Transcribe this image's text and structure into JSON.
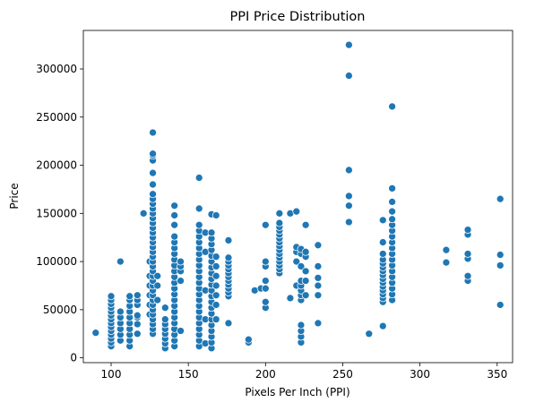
{
  "chart_data": {
    "type": "scatter",
    "title": "PPI Price Distribution",
    "xlabel": "Pixels Per Inch (PPI)",
    "ylabel": "Price",
    "xlim": [
      82,
      360
    ],
    "ylim": [
      -5000,
      340000
    ],
    "x_ticks": [
      100,
      150,
      200,
      250,
      300,
      350
    ],
    "y_ticks": [
      0,
      50000,
      100000,
      150000,
      200000,
      250000,
      300000
    ],
    "grid": false,
    "legend": "none",
    "marker_color": "#1f77b4",
    "marker_edge": "#ffffff",
    "points": [
      {
        "x": 90,
        "y": 26000
      },
      {
        "x": 100,
        "y": 12000
      },
      {
        "x": 100,
        "y": 16000
      },
      {
        "x": 100,
        "y": 20000
      },
      {
        "x": 100,
        "y": 24000
      },
      {
        "x": 100,
        "y": 28000
      },
      {
        "x": 100,
        "y": 32000
      },
      {
        "x": 100,
        "y": 36000
      },
      {
        "x": 100,
        "y": 40000
      },
      {
        "x": 100,
        "y": 44000
      },
      {
        "x": 100,
        "y": 48000
      },
      {
        "x": 100,
        "y": 52000
      },
      {
        "x": 100,
        "y": 56000
      },
      {
        "x": 100,
        "y": 60000
      },
      {
        "x": 100,
        "y": 64000
      },
      {
        "x": 106,
        "y": 18000
      },
      {
        "x": 106,
        "y": 24000
      },
      {
        "x": 106,
        "y": 30000
      },
      {
        "x": 106,
        "y": 36000
      },
      {
        "x": 106,
        "y": 42000
      },
      {
        "x": 106,
        "y": 48000
      },
      {
        "x": 106,
        "y": 100000
      },
      {
        "x": 112,
        "y": 12000
      },
      {
        "x": 112,
        "y": 18000
      },
      {
        "x": 112,
        "y": 24000
      },
      {
        "x": 112,
        "y": 30000
      },
      {
        "x": 112,
        "y": 36000
      },
      {
        "x": 112,
        "y": 42000
      },
      {
        "x": 112,
        "y": 48000
      },
      {
        "x": 112,
        "y": 54000
      },
      {
        "x": 112,
        "y": 60000
      },
      {
        "x": 112,
        "y": 64000
      },
      {
        "x": 117,
        "y": 25000
      },
      {
        "x": 117,
        "y": 35000
      },
      {
        "x": 117,
        "y": 42000
      },
      {
        "x": 117,
        "y": 44000
      },
      {
        "x": 117,
        "y": 55000
      },
      {
        "x": 117,
        "y": 60000
      },
      {
        "x": 117,
        "y": 65000
      },
      {
        "x": 121,
        "y": 150000
      },
      {
        "x": 125,
        "y": 45000
      },
      {
        "x": 125,
        "y": 55000
      },
      {
        "x": 125,
        "y": 65000
      },
      {
        "x": 125,
        "y": 75000
      },
      {
        "x": 125,
        "y": 85000
      },
      {
        "x": 125,
        "y": 100000
      },
      {
        "x": 127,
        "y": 25000
      },
      {
        "x": 127,
        "y": 30000
      },
      {
        "x": 127,
        "y": 35000
      },
      {
        "x": 127,
        "y": 40000
      },
      {
        "x": 127,
        "y": 45000
      },
      {
        "x": 127,
        "y": 50000
      },
      {
        "x": 127,
        "y": 55000
      },
      {
        "x": 127,
        "y": 60000
      },
      {
        "x": 127,
        "y": 65000
      },
      {
        "x": 127,
        "y": 70000
      },
      {
        "x": 127,
        "y": 75000
      },
      {
        "x": 127,
        "y": 80000
      },
      {
        "x": 127,
        "y": 85000
      },
      {
        "x": 127,
        "y": 90000
      },
      {
        "x": 127,
        "y": 95000
      },
      {
        "x": 127,
        "y": 100000
      },
      {
        "x": 127,
        "y": 105000
      },
      {
        "x": 127,
        "y": 110000
      },
      {
        "x": 127,
        "y": 115000
      },
      {
        "x": 127,
        "y": 120000
      },
      {
        "x": 127,
        "y": 125000
      },
      {
        "x": 127,
        "y": 130000
      },
      {
        "x": 127,
        "y": 135000
      },
      {
        "x": 127,
        "y": 140000
      },
      {
        "x": 127,
        "y": 145000
      },
      {
        "x": 127,
        "y": 150000
      },
      {
        "x": 127,
        "y": 155000
      },
      {
        "x": 127,
        "y": 160000
      },
      {
        "x": 127,
        "y": 165000
      },
      {
        "x": 127,
        "y": 170000
      },
      {
        "x": 127,
        "y": 180000
      },
      {
        "x": 127,
        "y": 192000
      },
      {
        "x": 127,
        "y": 205000
      },
      {
        "x": 127,
        "y": 210000
      },
      {
        "x": 127,
        "y": 212000
      },
      {
        "x": 127,
        "y": 234000
      },
      {
        "x": 130,
        "y": 60000
      },
      {
        "x": 130,
        "y": 75000
      },
      {
        "x": 130,
        "y": 85000
      },
      {
        "x": 135,
        "y": 10000
      },
      {
        "x": 135,
        "y": 15000
      },
      {
        "x": 135,
        "y": 20000
      },
      {
        "x": 135,
        "y": 25000
      },
      {
        "x": 135,
        "y": 30000
      },
      {
        "x": 135,
        "y": 35000
      },
      {
        "x": 135,
        "y": 40000
      },
      {
        "x": 135,
        "y": 52000
      },
      {
        "x": 141,
        "y": 12000
      },
      {
        "x": 141,
        "y": 18000
      },
      {
        "x": 141,
        "y": 24000
      },
      {
        "x": 141,
        "y": 30000
      },
      {
        "x": 141,
        "y": 36000
      },
      {
        "x": 141,
        "y": 42000
      },
      {
        "x": 141,
        "y": 48000
      },
      {
        "x": 141,
        "y": 54000
      },
      {
        "x": 141,
        "y": 60000
      },
      {
        "x": 141,
        "y": 66000
      },
      {
        "x": 141,
        "y": 72000
      },
      {
        "x": 141,
        "y": 78000
      },
      {
        "x": 141,
        "y": 84000
      },
      {
        "x": 141,
        "y": 90000
      },
      {
        "x": 141,
        "y": 96000
      },
      {
        "x": 141,
        "y": 102000
      },
      {
        "x": 141,
        "y": 108000
      },
      {
        "x": 141,
        "y": 114000
      },
      {
        "x": 141,
        "y": 120000
      },
      {
        "x": 141,
        "y": 126000
      },
      {
        "x": 141,
        "y": 138000
      },
      {
        "x": 141,
        "y": 148000
      },
      {
        "x": 141,
        "y": 158000
      },
      {
        "x": 145,
        "y": 28000
      },
      {
        "x": 145,
        "y": 80000
      },
      {
        "x": 145,
        "y": 90000
      },
      {
        "x": 145,
        "y": 95000
      },
      {
        "x": 145,
        "y": 100000
      },
      {
        "x": 157,
        "y": 12000
      },
      {
        "x": 157,
        "y": 18000
      },
      {
        "x": 157,
        "y": 24000
      },
      {
        "x": 157,
        "y": 30000
      },
      {
        "x": 157,
        "y": 36000
      },
      {
        "x": 157,
        "y": 42000
      },
      {
        "x": 157,
        "y": 48000
      },
      {
        "x": 157,
        "y": 54000
      },
      {
        "x": 157,
        "y": 60000
      },
      {
        "x": 157,
        "y": 66000
      },
      {
        "x": 157,
        "y": 72000
      },
      {
        "x": 157,
        "y": 78000
      },
      {
        "x": 157,
        "y": 84000
      },
      {
        "x": 157,
        "y": 90000
      },
      {
        "x": 157,
        "y": 96000
      },
      {
        "x": 157,
        "y": 102000
      },
      {
        "x": 157,
        "y": 108000
      },
      {
        "x": 157,
        "y": 114000
      },
      {
        "x": 157,
        "y": 120000
      },
      {
        "x": 157,
        "y": 126000
      },
      {
        "x": 157,
        "y": 132000
      },
      {
        "x": 157,
        "y": 138000
      },
      {
        "x": 157,
        "y": 155000
      },
      {
        "x": 157,
        "y": 187000
      },
      {
        "x": 161,
        "y": 15000
      },
      {
        "x": 161,
        "y": 40000
      },
      {
        "x": 161,
        "y": 70000
      },
      {
        "x": 161,
        "y": 110000
      },
      {
        "x": 161,
        "y": 130000
      },
      {
        "x": 165,
        "y": 10000
      },
      {
        "x": 165,
        "y": 16000
      },
      {
        "x": 165,
        "y": 22000
      },
      {
        "x": 165,
        "y": 28000
      },
      {
        "x": 165,
        "y": 34000
      },
      {
        "x": 165,
        "y": 40000
      },
      {
        "x": 165,
        "y": 46000
      },
      {
        "x": 165,
        "y": 52000
      },
      {
        "x": 165,
        "y": 58000
      },
      {
        "x": 165,
        "y": 64000
      },
      {
        "x": 165,
        "y": 70000
      },
      {
        "x": 165,
        "y": 76000
      },
      {
        "x": 165,
        "y": 82000
      },
      {
        "x": 165,
        "y": 88000
      },
      {
        "x": 165,
        "y": 94000
      },
      {
        "x": 165,
        "y": 100000
      },
      {
        "x": 165,
        "y": 106000
      },
      {
        "x": 165,
        "y": 112000
      },
      {
        "x": 165,
        "y": 118000
      },
      {
        "x": 165,
        "y": 124000
      },
      {
        "x": 165,
        "y": 130000
      },
      {
        "x": 165,
        "y": 149000
      },
      {
        "x": 168,
        "y": 40000
      },
      {
        "x": 168,
        "y": 55000
      },
      {
        "x": 168,
        "y": 65000
      },
      {
        "x": 168,
        "y": 75000
      },
      {
        "x": 168,
        "y": 85000
      },
      {
        "x": 168,
        "y": 95000
      },
      {
        "x": 168,
        "y": 105000
      },
      {
        "x": 168,
        "y": 148000
      },
      {
        "x": 176,
        "y": 36000
      },
      {
        "x": 176,
        "y": 64000
      },
      {
        "x": 176,
        "y": 68000
      },
      {
        "x": 176,
        "y": 72000
      },
      {
        "x": 176,
        "y": 76000
      },
      {
        "x": 176,
        "y": 80000
      },
      {
        "x": 176,
        "y": 84000
      },
      {
        "x": 176,
        "y": 88000
      },
      {
        "x": 176,
        "y": 92000
      },
      {
        "x": 176,
        "y": 96000
      },
      {
        "x": 176,
        "y": 100000
      },
      {
        "x": 176,
        "y": 104000
      },
      {
        "x": 176,
        "y": 122000
      },
      {
        "x": 189,
        "y": 16000
      },
      {
        "x": 189,
        "y": 19000
      },
      {
        "x": 193,
        "y": 70000
      },
      {
        "x": 197,
        "y": 72000
      },
      {
        "x": 200,
        "y": 52000
      },
      {
        "x": 200,
        "y": 58000
      },
      {
        "x": 200,
        "y": 72000
      },
      {
        "x": 200,
        "y": 80000
      },
      {
        "x": 200,
        "y": 95000
      },
      {
        "x": 200,
        "y": 100000
      },
      {
        "x": 200,
        "y": 138000
      },
      {
        "x": 209,
        "y": 88000
      },
      {
        "x": 209,
        "y": 92000
      },
      {
        "x": 209,
        "y": 96000
      },
      {
        "x": 209,
        "y": 100000
      },
      {
        "x": 209,
        "y": 104000
      },
      {
        "x": 209,
        "y": 108000
      },
      {
        "x": 209,
        "y": 112000
      },
      {
        "x": 209,
        "y": 116000
      },
      {
        "x": 209,
        "y": 120000
      },
      {
        "x": 209,
        "y": 124000
      },
      {
        "x": 209,
        "y": 128000
      },
      {
        "x": 209,
        "y": 132000
      },
      {
        "x": 209,
        "y": 136000
      },
      {
        "x": 209,
        "y": 140000
      },
      {
        "x": 209,
        "y": 150000
      },
      {
        "x": 216,
        "y": 62000
      },
      {
        "x": 216,
        "y": 150000
      },
      {
        "x": 220,
        "y": 75000
      },
      {
        "x": 220,
        "y": 100000
      },
      {
        "x": 220,
        "y": 110000
      },
      {
        "x": 220,
        "y": 115000
      },
      {
        "x": 220,
        "y": 152000
      },
      {
        "x": 223,
        "y": 16000
      },
      {
        "x": 223,
        "y": 22000
      },
      {
        "x": 223,
        "y": 28000
      },
      {
        "x": 223,
        "y": 34000
      },
      {
        "x": 223,
        "y": 60000
      },
      {
        "x": 223,
        "y": 65000
      },
      {
        "x": 223,
        "y": 70000
      },
      {
        "x": 223,
        "y": 75000
      },
      {
        "x": 223,
        "y": 80000
      },
      {
        "x": 223,
        "y": 95000
      },
      {
        "x": 223,
        "y": 108000
      },
      {
        "x": 223,
        "y": 113000
      },
      {
        "x": 226,
        "y": 65000
      },
      {
        "x": 226,
        "y": 80000
      },
      {
        "x": 226,
        "y": 90000
      },
      {
        "x": 226,
        "y": 105000
      },
      {
        "x": 226,
        "y": 110000
      },
      {
        "x": 226,
        "y": 138000
      },
      {
        "x": 234,
        "y": 36000
      },
      {
        "x": 234,
        "y": 65000
      },
      {
        "x": 234,
        "y": 75000
      },
      {
        "x": 234,
        "y": 83000
      },
      {
        "x": 234,
        "y": 95000
      },
      {
        "x": 234,
        "y": 117000
      },
      {
        "x": 254,
        "y": 141000
      },
      {
        "x": 254,
        "y": 158000
      },
      {
        "x": 254,
        "y": 168000
      },
      {
        "x": 254,
        "y": 195000
      },
      {
        "x": 254,
        "y": 293000
      },
      {
        "x": 254,
        "y": 325000
      },
      {
        "x": 267,
        "y": 25000
      },
      {
        "x": 276,
        "y": 33000
      },
      {
        "x": 276,
        "y": 58000
      },
      {
        "x": 276,
        "y": 62000
      },
      {
        "x": 276,
        "y": 66000
      },
      {
        "x": 276,
        "y": 70000
      },
      {
        "x": 276,
        "y": 74000
      },
      {
        "x": 276,
        "y": 78000
      },
      {
        "x": 276,
        "y": 82000
      },
      {
        "x": 276,
        "y": 86000
      },
      {
        "x": 276,
        "y": 90000
      },
      {
        "x": 276,
        "y": 94000
      },
      {
        "x": 276,
        "y": 98000
      },
      {
        "x": 276,
        "y": 102000
      },
      {
        "x": 276,
        "y": 108000
      },
      {
        "x": 276,
        "y": 120000
      },
      {
        "x": 276,
        "y": 143000
      },
      {
        "x": 282,
        "y": 60000
      },
      {
        "x": 282,
        "y": 66000
      },
      {
        "x": 282,
        "y": 72000
      },
      {
        "x": 282,
        "y": 78000
      },
      {
        "x": 282,
        "y": 84000
      },
      {
        "x": 282,
        "y": 90000
      },
      {
        "x": 282,
        "y": 96000
      },
      {
        "x": 282,
        "y": 102000
      },
      {
        "x": 282,
        "y": 108000
      },
      {
        "x": 282,
        "y": 114000
      },
      {
        "x": 282,
        "y": 120000
      },
      {
        "x": 282,
        "y": 126000
      },
      {
        "x": 282,
        "y": 132000
      },
      {
        "x": 282,
        "y": 138000
      },
      {
        "x": 282,
        "y": 144000
      },
      {
        "x": 282,
        "y": 152000
      },
      {
        "x": 282,
        "y": 162000
      },
      {
        "x": 282,
        "y": 176000
      },
      {
        "x": 282,
        "y": 261000
      },
      {
        "x": 317,
        "y": 99000
      },
      {
        "x": 317,
        "y": 112000
      },
      {
        "x": 331,
        "y": 80000
      },
      {
        "x": 331,
        "y": 85000
      },
      {
        "x": 331,
        "y": 103000
      },
      {
        "x": 331,
        "y": 108000
      },
      {
        "x": 331,
        "y": 128000
      },
      {
        "x": 331,
        "y": 133000
      },
      {
        "x": 352,
        "y": 55000
      },
      {
        "x": 352,
        "y": 96000
      },
      {
        "x": 352,
        "y": 107000
      },
      {
        "x": 352,
        "y": 165000
      }
    ]
  }
}
